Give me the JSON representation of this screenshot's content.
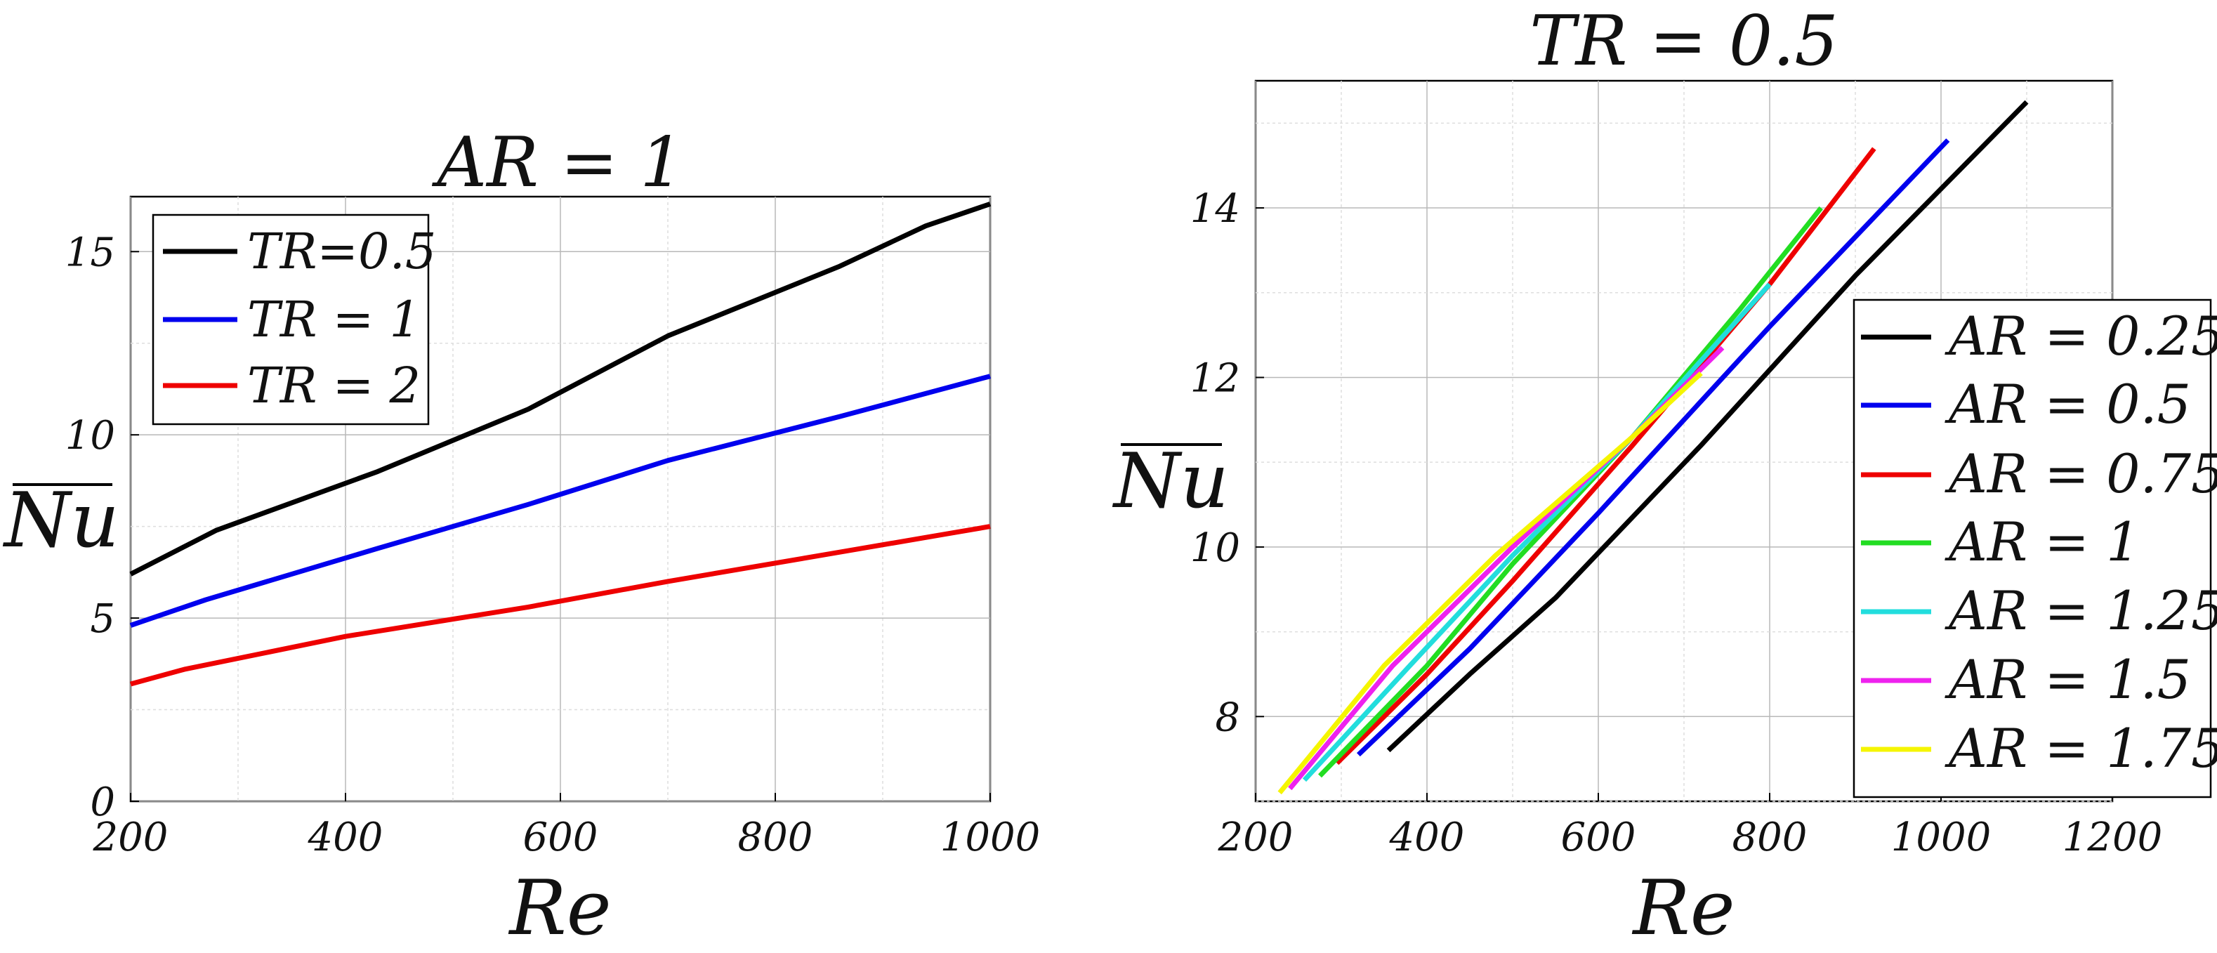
{
  "chart_data": [
    {
      "type": "line",
      "title": "AR = 1",
      "xlabel": "Re",
      "ylabel": "Nu",
      "xlim": [
        200,
        1000
      ],
      "ylim": [
        0,
        16.5
      ],
      "xticks": [
        200,
        400,
        600,
        800,
        1000
      ],
      "yticks": [
        0,
        5,
        10,
        15
      ],
      "xtick_labels": [
        "200",
        "400",
        "600",
        "800",
        "1000"
      ],
      "ytick_labels": [
        "0",
        "5",
        "10",
        "15"
      ],
      "grid": true,
      "legend_position": "top-left",
      "series": [
        {
          "name": "TR=0.5",
          "color": "#000000",
          "x": [
            200,
            280,
            430,
            570,
            700,
            860,
            940,
            1000
          ],
          "y": [
            6.2,
            7.4,
            9.0,
            10.7,
            12.7,
            14.6,
            15.7,
            16.3
          ]
        },
        {
          "name": "TR = 1",
          "color": "#0000ee",
          "x": [
            200,
            270,
            430,
            570,
            700,
            860,
            1000
          ],
          "y": [
            4.8,
            5.5,
            6.9,
            8.1,
            9.3,
            10.5,
            11.6
          ]
        },
        {
          "name": "TR = 2",
          "color": "#ee0000",
          "x": [
            200,
            250,
            400,
            570,
            700,
            860,
            1000
          ],
          "y": [
            3.2,
            3.6,
            4.5,
            5.3,
            6.0,
            6.8,
            7.5
          ]
        }
      ]
    },
    {
      "type": "line",
      "title": "TR = 0.5",
      "xlabel": "Re",
      "ylabel": "Nu",
      "xlim": [
        200,
        1200
      ],
      "ylim": [
        7,
        15.5
      ],
      "xticks": [
        200,
        400,
        600,
        800,
        1000,
        1200
      ],
      "yticks": [
        8,
        10,
        12,
        14
      ],
      "xtick_labels": [
        "200",
        "400",
        "600",
        "800",
        "1000",
        "1200"
      ],
      "ytick_labels": [
        "8",
        "10",
        "12",
        "14"
      ],
      "grid": true,
      "legend_position": "right",
      "series": [
        {
          "name": "AR = 0.25",
          "color": "#000000",
          "x": [
            355,
            450,
            550,
            720,
            900,
            1100
          ],
          "y": [
            7.6,
            8.5,
            9.4,
            11.2,
            13.2,
            15.25
          ]
        },
        {
          "name": "AR = 0.5",
          "color": "#0000ee",
          "x": [
            320,
            450,
            600,
            800,
            1008
          ],
          "y": [
            7.55,
            8.8,
            10.4,
            12.6,
            14.8
          ]
        },
        {
          "name": "AR = 0.75",
          "color": "#ee0000",
          "x": [
            295,
            400,
            500,
            640,
            800,
            922
          ],
          "y": [
            7.45,
            8.5,
            9.6,
            11.2,
            13.1,
            14.7
          ]
        },
        {
          "name": "AR = 1",
          "color": "#22dd22",
          "x": [
            275,
            400,
            500,
            640,
            765,
            860
          ],
          "y": [
            7.3,
            8.6,
            9.8,
            11.3,
            12.8,
            14.0
          ]
        },
        {
          "name": "AR = 1.25",
          "color": "#22dddd",
          "x": [
            257,
            380,
            500,
            640,
            800
          ],
          "y": [
            7.25,
            8.6,
            9.9,
            11.3,
            13.1
          ]
        },
        {
          "name": "AR = 1.5",
          "color": "#ee22ee",
          "x": [
            240,
            360,
            500,
            640,
            745
          ],
          "y": [
            7.15,
            8.6,
            10.0,
            11.3,
            12.35
          ]
        },
        {
          "name": "AR = 1.75",
          "color": "#f5f500",
          "x": [
            228,
            350,
            480,
            640,
            720
          ],
          "y": [
            7.1,
            8.6,
            9.9,
            11.3,
            12.05
          ]
        }
      ]
    }
  ]
}
